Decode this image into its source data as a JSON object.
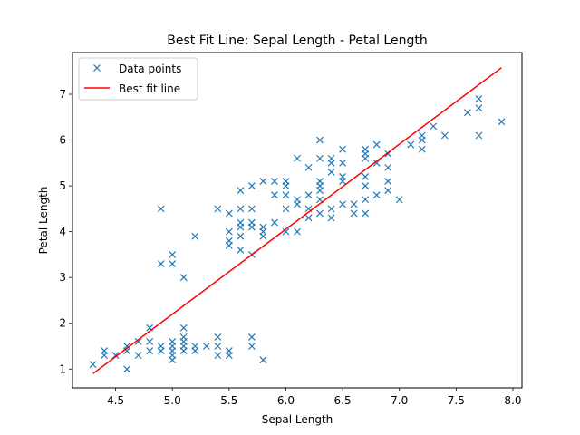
{
  "chart_data": {
    "type": "scatter",
    "title": "Best Fit Line: Sepal Length - Petal Length",
    "xlabel": "Sepal Length",
    "ylabel": "Petal Length",
    "xlim": [
      4.12,
      8.08
    ],
    "ylim": [
      0.59,
      7.91
    ],
    "xticks": [
      4.5,
      5.0,
      5.5,
      6.0,
      6.5,
      7.0,
      7.5,
      8.0
    ],
    "xtick_labels": [
      "4.5",
      "5.0",
      "5.5",
      "6.0",
      "6.5",
      "7.0",
      "7.5",
      "8.0"
    ],
    "yticks": [
      1,
      2,
      3,
      4,
      5,
      6,
      7
    ],
    "ytick_labels": [
      "1",
      "2",
      "3",
      "4",
      "5",
      "6",
      "7"
    ],
    "grid": false,
    "legend_position": "top-left",
    "series": [
      {
        "name": "Data points",
        "kind": "scatter",
        "marker": "x",
        "color": "#1f77b4",
        "points": [
          [
            4.3,
            1.1
          ],
          [
            4.4,
            1.4
          ],
          [
            4.4,
            1.3
          ],
          [
            4.5,
            1.3
          ],
          [
            4.6,
            1.4
          ],
          [
            4.6,
            1.5
          ],
          [
            4.6,
            1.0
          ],
          [
            4.7,
            1.3
          ],
          [
            4.7,
            1.6
          ],
          [
            4.8,
            1.6
          ],
          [
            4.8,
            1.4
          ],
          [
            4.8,
            1.9
          ],
          [
            4.9,
            1.4
          ],
          [
            4.9,
            1.5
          ],
          [
            4.9,
            4.5
          ],
          [
            4.9,
            3.3
          ],
          [
            5.0,
            1.4
          ],
          [
            5.0,
            1.5
          ],
          [
            5.0,
            1.6
          ],
          [
            5.0,
            1.2
          ],
          [
            5.0,
            1.3
          ],
          [
            5.0,
            3.5
          ],
          [
            5.0,
            3.3
          ],
          [
            5.1,
            1.4
          ],
          [
            5.1,
            1.5
          ],
          [
            5.1,
            1.7
          ],
          [
            5.1,
            1.9
          ],
          [
            5.1,
            1.6
          ],
          [
            5.1,
            3.0
          ],
          [
            5.2,
            1.5
          ],
          [
            5.2,
            1.4
          ],
          [
            5.2,
            3.9
          ],
          [
            5.3,
            1.5
          ],
          [
            5.4,
            1.7
          ],
          [
            5.4,
            1.5
          ],
          [
            5.4,
            1.3
          ],
          [
            5.4,
            4.5
          ],
          [
            5.5,
            1.3
          ],
          [
            5.5,
            1.4
          ],
          [
            5.5,
            4.0
          ],
          [
            5.5,
            3.8
          ],
          [
            5.5,
            3.7
          ],
          [
            5.5,
            4.4
          ],
          [
            5.6,
            3.9
          ],
          [
            5.6,
            4.5
          ],
          [
            5.6,
            4.1
          ],
          [
            5.6,
            4.2
          ],
          [
            5.6,
            4.9
          ],
          [
            5.6,
            3.6
          ],
          [
            5.7,
            1.5
          ],
          [
            5.7,
            1.7
          ],
          [
            5.7,
            4.5
          ],
          [
            5.7,
            3.5
          ],
          [
            5.7,
            4.2
          ],
          [
            5.7,
            4.1
          ],
          [
            5.7,
            5.0
          ],
          [
            5.8,
            1.2
          ],
          [
            5.8,
            4.1
          ],
          [
            5.8,
            4.0
          ],
          [
            5.8,
            3.9
          ],
          [
            5.8,
            5.1
          ],
          [
            5.9,
            4.8
          ],
          [
            5.9,
            4.2
          ],
          [
            5.9,
            5.1
          ],
          [
            6.0,
            4.5
          ],
          [
            6.0,
            4.0
          ],
          [
            6.0,
            5.1
          ],
          [
            6.0,
            4.8
          ],
          [
            6.0,
            5.0
          ],
          [
            6.1,
            4.7
          ],
          [
            6.1,
            4.6
          ],
          [
            6.1,
            4.0
          ],
          [
            6.1,
            5.6
          ],
          [
            6.2,
            4.5
          ],
          [
            6.2,
            4.3
          ],
          [
            6.2,
            4.8
          ],
          [
            6.2,
            5.4
          ],
          [
            6.3,
            4.9
          ],
          [
            6.3,
            4.7
          ],
          [
            6.3,
            4.4
          ],
          [
            6.3,
            5.6
          ],
          [
            6.3,
            5.1
          ],
          [
            6.3,
            5.0
          ],
          [
            6.3,
            6.0
          ],
          [
            6.4,
            4.5
          ],
          [
            6.4,
            4.3
          ],
          [
            6.4,
            5.3
          ],
          [
            6.4,
            5.5
          ],
          [
            6.4,
            5.6
          ],
          [
            6.5,
            4.6
          ],
          [
            6.5,
            5.8
          ],
          [
            6.5,
            5.5
          ],
          [
            6.5,
            5.1
          ],
          [
            6.5,
            5.2
          ],
          [
            6.6,
            4.6
          ],
          [
            6.6,
            4.4
          ],
          [
            6.7,
            4.7
          ],
          [
            6.7,
            4.4
          ],
          [
            6.7,
            5.0
          ],
          [
            6.7,
            5.8
          ],
          [
            6.7,
            5.7
          ],
          [
            6.7,
            5.6
          ],
          [
            6.7,
            5.2
          ],
          [
            6.8,
            4.8
          ],
          [
            6.8,
            5.5
          ],
          [
            6.8,
            5.9
          ],
          [
            6.9,
            4.9
          ],
          [
            6.9,
            5.4
          ],
          [
            6.9,
            5.7
          ],
          [
            6.9,
            5.1
          ],
          [
            7.0,
            4.7
          ],
          [
            7.1,
            5.9
          ],
          [
            7.2,
            6.0
          ],
          [
            7.2,
            6.1
          ],
          [
            7.2,
            5.8
          ],
          [
            7.3,
            6.3
          ],
          [
            7.4,
            6.1
          ],
          [
            7.6,
            6.6
          ],
          [
            7.7,
            6.7
          ],
          [
            7.7,
            6.9
          ],
          [
            7.7,
            6.1
          ],
          [
            7.9,
            6.4
          ]
        ]
      },
      {
        "name": "Best fit line",
        "kind": "line",
        "color": "#ff0000",
        "x": [
          4.3,
          7.9
        ],
        "y": [
          0.9,
          7.58
        ]
      }
    ]
  }
}
